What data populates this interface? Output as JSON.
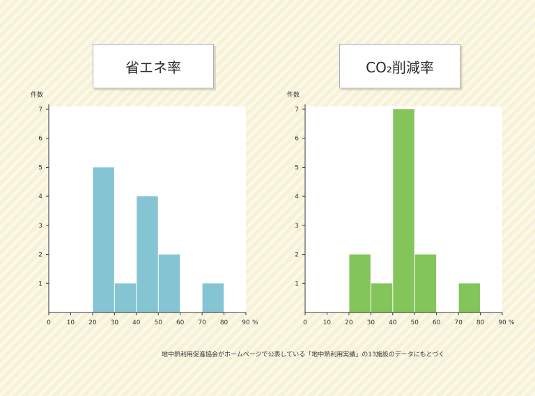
{
  "colors": {
    "left_bar": "#85c5d3",
    "right_bar": "#84c55b",
    "axis": "#333333"
  },
  "footnote": "地中熱利用促進協会がホームページで公表している「地中熱利用実績」の13施設のデータにもとづく",
  "chart_data": [
    {
      "type": "bar",
      "title": "省エネ率",
      "ylabel": "件数",
      "xunit": "%",
      "xticks": [
        0,
        10,
        20,
        30,
        40,
        50,
        60,
        70,
        80,
        90
      ],
      "yticks": [
        1,
        2,
        3,
        4,
        5,
        6,
        7
      ],
      "xlim": [
        0,
        90
      ],
      "ylim": [
        0,
        7
      ],
      "bins": [
        {
          "from": 20,
          "to": 30,
          "value": 5
        },
        {
          "from": 30,
          "to": 40,
          "value": 1
        },
        {
          "from": 40,
          "to": 50,
          "value": 4
        },
        {
          "from": 50,
          "to": 60,
          "value": 2
        },
        {
          "from": 70,
          "to": 80,
          "value": 1
        }
      ],
      "color": "#85c5d3"
    },
    {
      "type": "bar",
      "title": "CO₂削減率",
      "ylabel": "件数",
      "xunit": "%",
      "xticks": [
        0,
        10,
        20,
        30,
        40,
        50,
        60,
        70,
        80,
        90
      ],
      "yticks": [
        1,
        2,
        3,
        4,
        5,
        6,
        7
      ],
      "xlim": [
        0,
        90
      ],
      "ylim": [
        0,
        7
      ],
      "bins": [
        {
          "from": 20,
          "to": 30,
          "value": 2
        },
        {
          "from": 30,
          "to": 40,
          "value": 1
        },
        {
          "from": 40,
          "to": 50,
          "value": 7
        },
        {
          "from": 50,
          "to": 60,
          "value": 2
        },
        {
          "from": 70,
          "to": 80,
          "value": 1
        }
      ],
      "color": "#84c55b"
    }
  ]
}
